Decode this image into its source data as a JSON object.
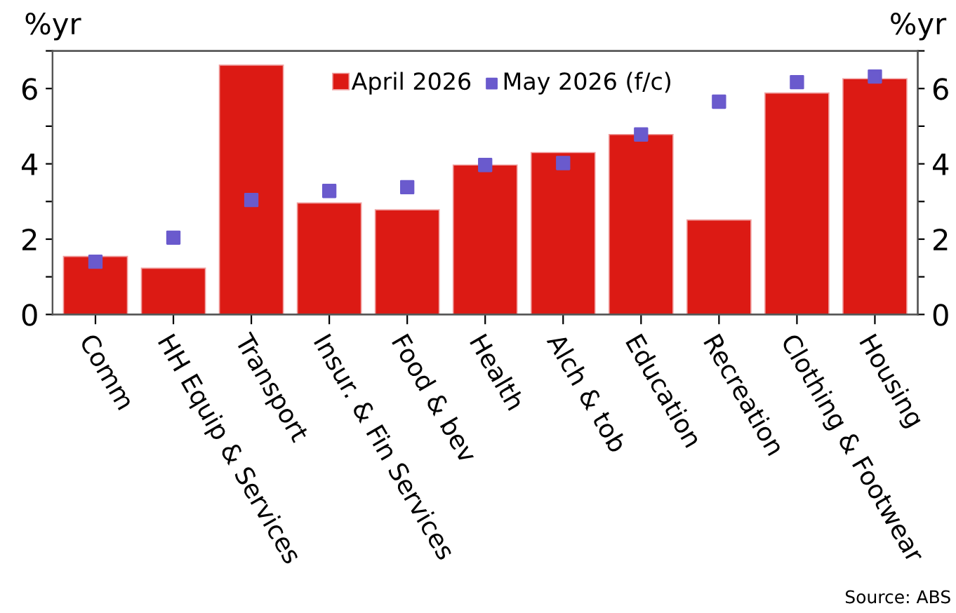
{
  "chart_data": {
    "type": "bar",
    "categories": [
      "Comm",
      "HH Equip & Services",
      "Transport",
      "Insur. & Fin Services",
      "Food & bev",
      "Health",
      "Alch & tob",
      "Education",
      "Recreation",
      "Clothing & Footwear",
      "Housing"
    ],
    "series": [
      {
        "name": "April 2026",
        "color": "#dc1a14",
        "values": [
          1.54,
          1.23,
          6.62,
          2.96,
          2.78,
          3.97,
          4.3,
          4.78,
          2.51,
          5.88,
          6.26
        ]
      },
      {
        "name": "May 2026 (f/c)",
        "type": "scatter",
        "color": "#6a5acd",
        "values": [
          1.4,
          2.04,
          3.04,
          3.28,
          3.38,
          3.97,
          4.02,
          4.78,
          5.65,
          6.17,
          6.32
        ]
      }
    ],
    "ylabel": "%yr",
    "y2label": "%yr",
    "ylim": [
      0,
      7
    ],
    "yticks": [
      0,
      {
        "value": 1,
        "label": null
      },
      2,
      {
        "value": 3,
        "label": null
      },
      4,
      {
        "value": 5,
        "label": null
      },
      6,
      {
        "value": 7,
        "label": null
      }
    ],
    "y2lim": [
      0,
      7
    ],
    "y2ticks": [
      0,
      {
        "value": 1,
        "label": null
      },
      2,
      {
        "value": 3,
        "label": null
      },
      4,
      {
        "value": 5,
        "label": null
      },
      6,
      {
        "value": 7,
        "label": null
      }
    ],
    "marker": "square",
    "legend": "top",
    "grid": false,
    "annotations": [
      "Source: ABS"
    ]
  }
}
